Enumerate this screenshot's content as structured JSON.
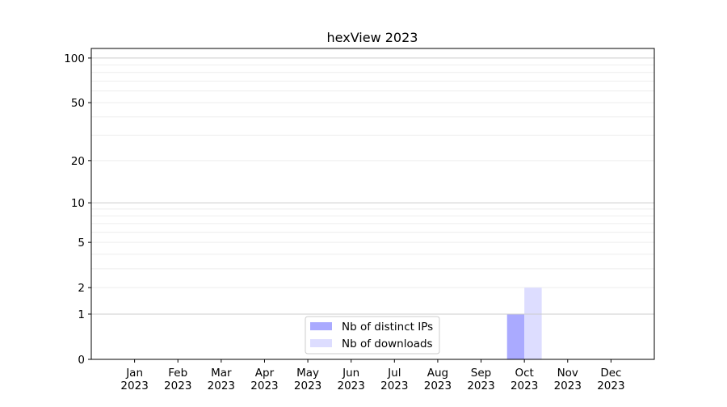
{
  "chart_data": {
    "type": "bar",
    "title": "hexView 2023",
    "xlabel": "",
    "ylabel": "",
    "y_scale": "log(1+y)",
    "ylim": [
      0,
      116
    ],
    "y_ticks": [
      0,
      1,
      2,
      5,
      10,
      20,
      50,
      100
    ],
    "grid": true,
    "legend_position": "lower-center",
    "categories": [
      "Jan\n2023",
      "Feb\n2023",
      "Mar\n2023",
      "Apr\n2023",
      "May\n2023",
      "Jun\n2023",
      "Jul\n2023",
      "Aug\n2023",
      "Sep\n2023",
      "Oct\n2023",
      "Nov\n2023",
      "Dec\n2023"
    ],
    "series": [
      {
        "name": "Nb of distinct IPs",
        "color": "#aaaaff",
        "values": [
          0,
          0,
          0,
          0,
          0,
          0,
          0,
          0,
          0,
          1,
          0,
          0
        ]
      },
      {
        "name": "Nb of downloads",
        "color": "#ddddff",
        "values": [
          0,
          0,
          0,
          0,
          0,
          0,
          0,
          0,
          0,
          2,
          0,
          0
        ]
      }
    ]
  }
}
